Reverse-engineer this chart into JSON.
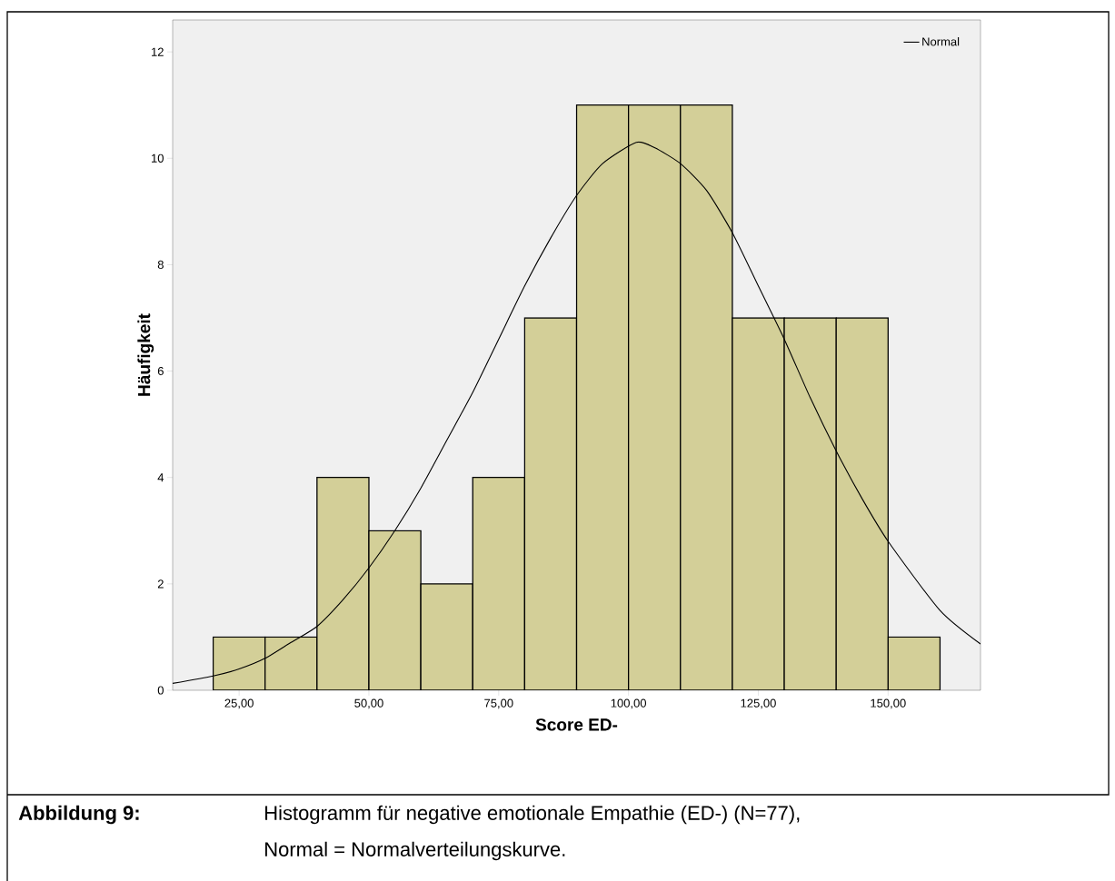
{
  "chart_data": {
    "type": "histogram",
    "xlabel": "Score ED-",
    "ylabel": "Häufigkeit",
    "bins": [
      20,
      30,
      40,
      50,
      60,
      70,
      80,
      90,
      100,
      110,
      120,
      130,
      140,
      150,
      160
    ],
    "values": [
      1,
      1,
      4,
      3,
      2,
      4,
      7,
      11,
      11,
      11,
      7,
      7,
      7,
      1
    ],
    "color": "#d3cf98",
    "series": [
      {
        "name": "Normal",
        "type": "line",
        "color": "#000000",
        "x": [
          12.2,
          20,
          25,
          30,
          35,
          40,
          45,
          50,
          55,
          60,
          65,
          70,
          75,
          80,
          85,
          90,
          95,
          101.5,
          105,
          110,
          115,
          120,
          125,
          130,
          135,
          140,
          145,
          150,
          160,
          167.8
        ],
        "values": [
          0.13,
          0.27,
          0.4,
          0.6,
          0.9,
          1.2,
          1.7,
          2.3,
          3.0,
          3.8,
          4.7,
          5.6,
          6.6,
          7.6,
          8.5,
          9.3,
          9.9,
          10.3,
          10.2,
          9.9,
          9.4,
          8.6,
          7.6,
          6.6,
          5.5,
          4.5,
          3.6,
          2.8,
          1.5,
          0.87
        ]
      }
    ],
    "xlim": [
      12.2,
      167.8
    ],
    "ylim": [
      0,
      12.6
    ],
    "xticks": [
      {
        "value": 25,
        "label": "25,00"
      },
      {
        "value": 50,
        "label": "50,00"
      },
      {
        "value": 75,
        "label": "75,00"
      },
      {
        "value": 100,
        "label": "100,00"
      },
      {
        "value": 125,
        "label": "125,00"
      },
      {
        "value": 150,
        "label": "150,00"
      }
    ],
    "yticks": [
      0,
      2,
      4,
      6,
      8,
      10,
      12
    ],
    "legend": "top right",
    "marker": "none",
    "line_style": "solid",
    "annotations": [
      "Abbildung 9:",
      "Histogramm für negative emotionale Empathie (ED-) (N=77),",
      "Normal = Normalverteilungskurve."
    ]
  }
}
